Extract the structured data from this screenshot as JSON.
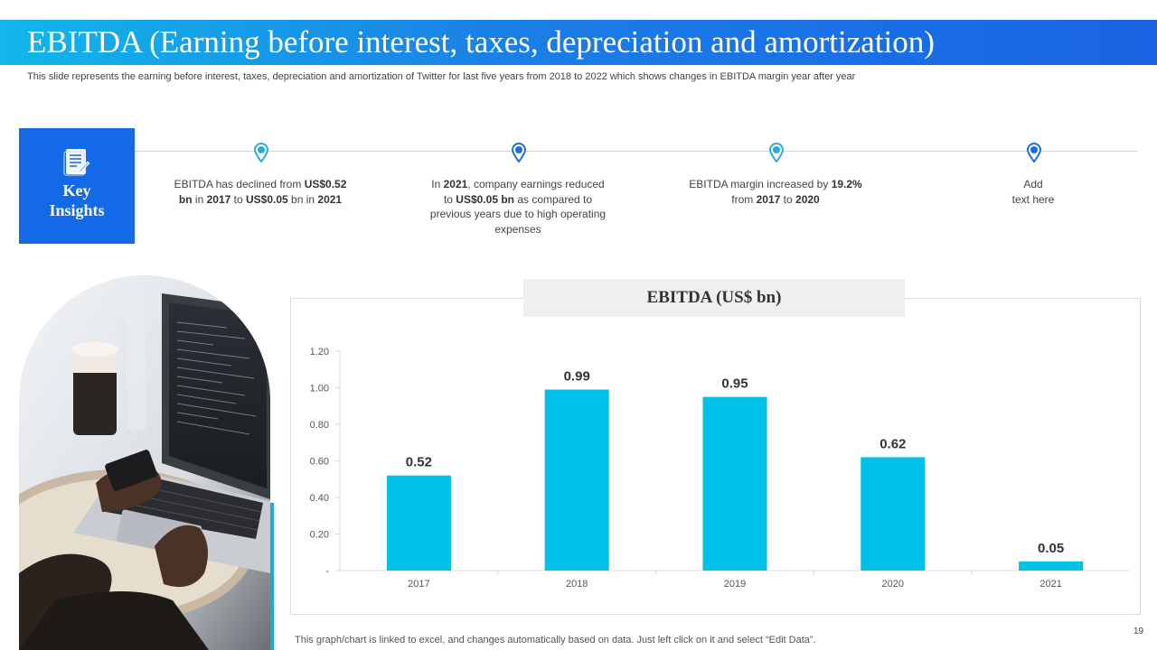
{
  "slide": {
    "title": "EBITDA (Earning before interest, taxes, depreciation and amortization)",
    "subtitle": "This slide represents the earning before interest, taxes, depreciation and amortization of Twitter for last five years from 2018 to 2022 which shows changes in EBITDA margin year after year",
    "page_number": "19",
    "footnote": "This graph/chart is linked to excel,  and changes automatically based on data. Just left click on it and select “Edit Data”."
  },
  "key_insights": {
    "label_line1": "Key",
    "label_line2": "Insights",
    "icon": "document-icon",
    "items": [
      {
        "segments": [
          {
            "t": "EBITDA  has declined from "
          },
          {
            "t": "US$0.52 bn",
            "b": true
          },
          {
            "t": " in "
          },
          {
            "t": "2017",
            "b": true
          },
          {
            "t": " to "
          },
          {
            "t": "US$0.05",
            "b": true
          },
          {
            "t": " bn in "
          },
          {
            "t": "2021",
            "b": true
          }
        ]
      },
      {
        "segments": [
          {
            "t": "In "
          },
          {
            "t": "2021",
            "b": true
          },
          {
            "t": ", company earnings reduced to "
          },
          {
            "t": "US$0.05 bn",
            "b": true
          },
          {
            "t": " as compared to previous  years due to high operating expenses"
          }
        ]
      },
      {
        "segments": [
          {
            "t": "EBITDA  margin increased by "
          },
          {
            "t": "19.2%",
            "b": true
          },
          {
            "t": " from "
          },
          {
            "t": "2017",
            "b": true
          },
          {
            "t": " to "
          },
          {
            "t": "2020",
            "b": true
          }
        ]
      },
      {
        "segments": [
          {
            "t": "Add"
          },
          {
            "br": true
          },
          {
            "t": "text here"
          }
        ]
      }
    ],
    "pin_colors": [
      "#2aa9e0",
      "#1a6fe0",
      "#2aa9e0",
      "#1a6fe0"
    ]
  },
  "chart_data": {
    "type": "bar",
    "title": "EBITDA (US$ bn)",
    "categories": [
      "2017",
      "2018",
      "2019",
      "2020",
      "2021"
    ],
    "values": [
      0.52,
      0.99,
      0.95,
      0.62,
      0.05
    ],
    "data_labels": [
      "0.52",
      "0.99",
      "0.95",
      "0.62",
      "0.05"
    ],
    "yticks": [
      "-",
      "0.20",
      "0.40",
      "0.60",
      "0.80",
      "1.00",
      "1.20"
    ],
    "ylim": [
      0,
      1.2
    ],
    "xlabel": "",
    "ylabel": "",
    "bar_color": "#00c0e8",
    "grid": false,
    "legend": "none"
  },
  "colors": {
    "accent": "#1469e6",
    "title_gradient_start": "#12b6ea",
    "title_gradient_end": "#1a63e4"
  }
}
